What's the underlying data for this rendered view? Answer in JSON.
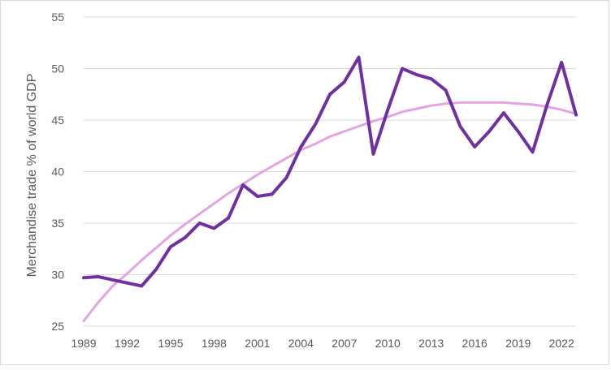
{
  "chart_data": {
    "type": "line",
    "title": "",
    "xlabel": "",
    "ylabel": "Merchandise trade % of world GDP",
    "xlim": [
      1989,
      2023
    ],
    "ylim": [
      25,
      55
    ],
    "y_ticks": [
      25,
      30,
      35,
      40,
      45,
      50,
      55
    ],
    "x_ticks": [
      1989,
      1992,
      1995,
      1998,
      2001,
      2004,
      2007,
      2010,
      2013,
      2016,
      2019,
      2022
    ],
    "grid": "horizontal",
    "legend": "none",
    "series": [
      {
        "color": "#7030a0",
        "x": [
          1989,
          1990,
          1991,
          1992,
          1993,
          1994,
          1995,
          1996,
          1997,
          1998,
          1999,
          2000,
          2001,
          2002,
          2003,
          2004,
          2005,
          2006,
          2007,
          2008,
          2009,
          2010,
          2011,
          2012,
          2013,
          2014,
          2015,
          2016,
          2017,
          2018,
          2019,
          2020,
          2021,
          2022,
          2023
        ],
        "values": [
          29.7,
          29.8,
          29.5,
          29.2,
          28.9,
          30.5,
          32.7,
          33.6,
          35.0,
          34.5,
          35.5,
          38.7,
          37.6,
          37.8,
          39.4,
          42.4,
          44.6,
          47.5,
          48.7,
          51.1,
          41.7,
          46.0,
          50.0,
          49.4,
          49.0,
          47.9,
          44.4,
          42.4,
          43.9,
          45.7,
          43.9,
          41.9,
          46.5,
          50.6,
          45.5
        ]
      },
      {
        "color": "#e3a4e3",
        "x": [
          1989,
          1990,
          1991,
          1992,
          1993,
          1994,
          1995,
          1996,
          1997,
          1998,
          1999,
          2000,
          2001,
          2002,
          2003,
          2004,
          2005,
          2006,
          2007,
          2008,
          2009,
          2010,
          2011,
          2012,
          2013,
          2014,
          2015,
          2016,
          2017,
          2018,
          2019,
          2020,
          2021,
          2022,
          2023
        ],
        "values": [
          25.5,
          27.3,
          28.9,
          30.1,
          31.4,
          32.6,
          33.8,
          34.9,
          35.9,
          36.9,
          37.9,
          38.8,
          39.7,
          40.5,
          41.3,
          42.1,
          42.7,
          43.4,
          43.9,
          44.4,
          44.9,
          45.3,
          45.8,
          46.1,
          46.4,
          46.6,
          46.7,
          46.7,
          46.7,
          46.7,
          46.6,
          46.5,
          46.3,
          46.0,
          45.6
        ]
      }
    ]
  }
}
